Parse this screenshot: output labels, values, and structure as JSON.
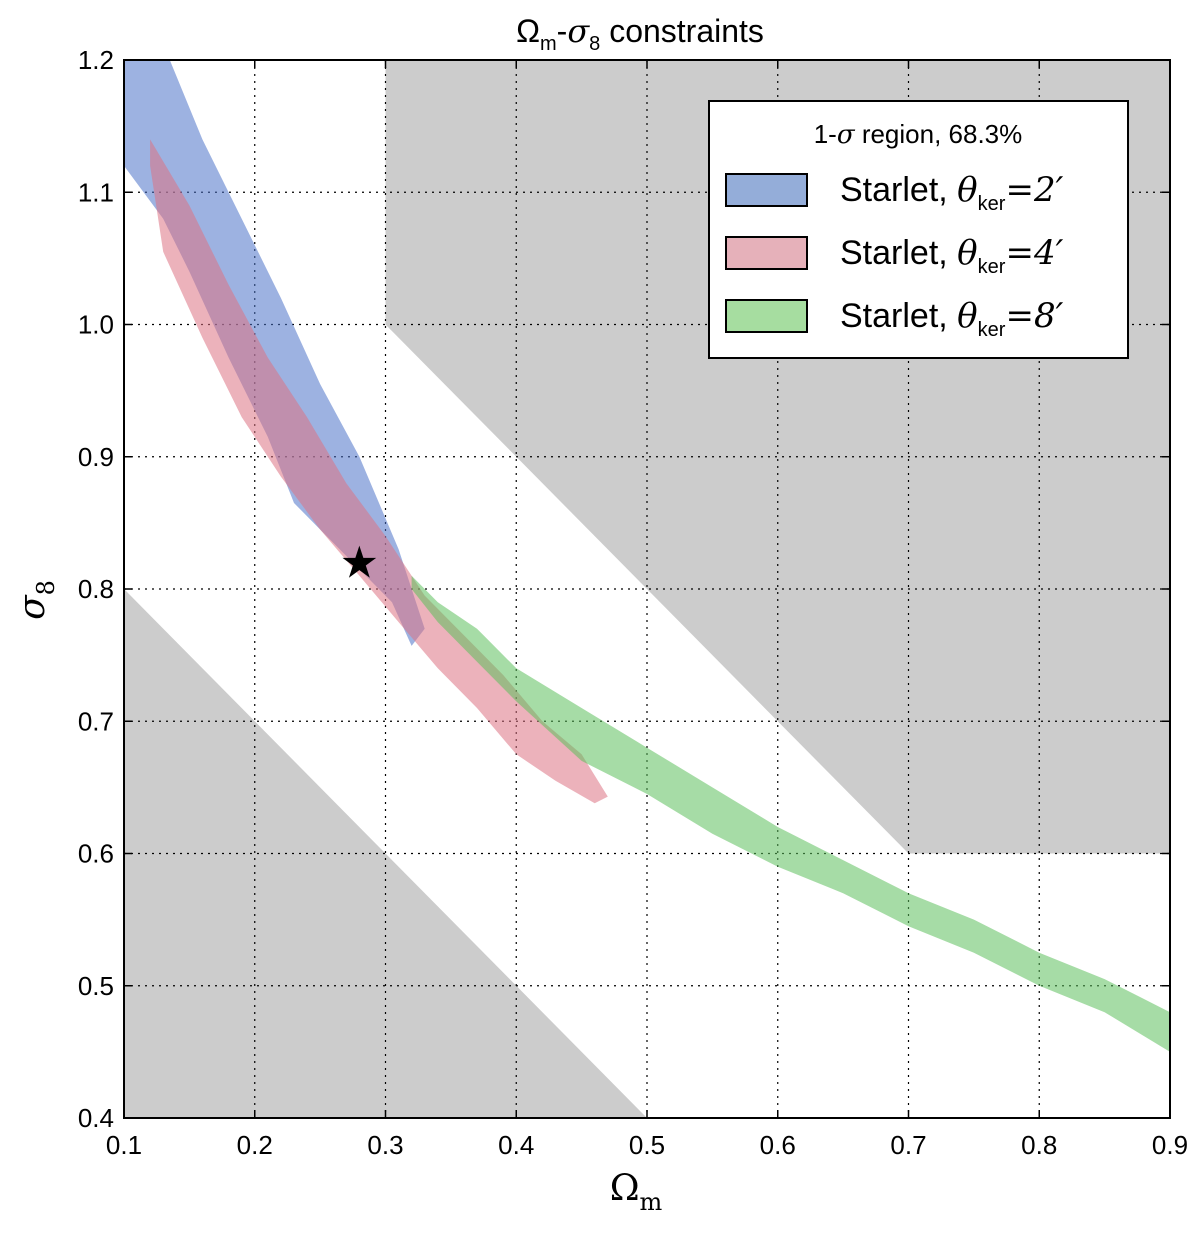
{
  "chart_data": {
    "type": "area",
    "title": "Ω_m-σ_8 constraints",
    "title_parts": {
      "omega": "Ω",
      "m": "m",
      "dash": "-",
      "sigma": "σ",
      "eight": "8",
      "rest": " constraints"
    },
    "xlabel": "Ω_m",
    "xlabel_parts": {
      "omega": "Ω",
      "sub": "m"
    },
    "ylabel": "σ_8",
    "ylabel_parts": {
      "sigma": "σ",
      "sub": "8"
    },
    "xlim": [
      0.1,
      0.9
    ],
    "ylim": [
      0.4,
      1.2
    ],
    "xticks": [
      "0.1",
      "0.2",
      "0.3",
      "0.4",
      "0.5",
      "0.6",
      "0.7",
      "0.8",
      "0.9"
    ],
    "yticks": [
      "0.4",
      "0.5",
      "0.6",
      "0.7",
      "0.8",
      "0.9",
      "1.0",
      "1.1",
      "1.2"
    ],
    "grid": true,
    "legend": {
      "placement": "top-right",
      "title": "1-σ region, 68.3%",
      "title_parts": {
        "pre": "1-",
        "sigma": "σ",
        "post": " region, 68.3%"
      }
    },
    "excluded_regions": [
      {
        "color": "#cccccc",
        "polygon": [
          [
            0.1,
            0.8
          ],
          [
            0.5,
            0.4
          ],
          [
            0.1,
            0.4
          ]
        ]
      },
      {
        "color": "#cccccc",
        "polygon": [
          [
            0.3,
            1.2
          ],
          [
            0.9,
            1.2
          ],
          [
            0.9,
            0.6
          ],
          [
            0.7,
            0.6
          ],
          [
            0.3,
            1.0
          ]
        ]
      }
    ],
    "series": [
      {
        "name": "Starlet, θ_ker = 2′",
        "name_parts": {
          "label": "Starlet, ",
          "theta": "θ",
          "sub": "ker",
          "eq": "=2′"
        },
        "color": "#4c72c8",
        "opacity": 0.55,
        "region": [
          [
            0.1,
            1.2
          ],
          [
            0.135,
            1.2
          ],
          [
            0.16,
            1.14
          ],
          [
            0.19,
            1.08
          ],
          [
            0.22,
            1.02
          ],
          [
            0.25,
            0.955
          ],
          [
            0.28,
            0.9
          ],
          [
            0.31,
            0.83
          ],
          [
            0.33,
            0.77
          ],
          [
            0.32,
            0.757
          ],
          [
            0.305,
            0.79
          ],
          [
            0.28,
            0.815
          ],
          [
            0.255,
            0.84
          ],
          [
            0.23,
            0.865
          ],
          [
            0.21,
            0.915
          ],
          [
            0.18,
            0.975
          ],
          [
            0.15,
            1.04
          ],
          [
            0.13,
            1.08
          ],
          [
            0.1,
            1.12
          ]
        ]
      },
      {
        "name": "Starlet, θ_ker = 4′",
        "name_parts": {
          "label": "Starlet, ",
          "theta": "θ",
          "sub": "ker",
          "eq": "=4′"
        },
        "color": "#dc7384",
        "opacity": 0.55,
        "region": [
          [
            0.12,
            1.14
          ],
          [
            0.15,
            1.09
          ],
          [
            0.18,
            1.03
          ],
          [
            0.21,
            0.975
          ],
          [
            0.24,
            0.93
          ],
          [
            0.27,
            0.88
          ],
          [
            0.3,
            0.84
          ],
          [
            0.33,
            0.795
          ],
          [
            0.36,
            0.765
          ],
          [
            0.39,
            0.735
          ],
          [
            0.42,
            0.7
          ],
          [
            0.45,
            0.675
          ],
          [
            0.47,
            0.643
          ],
          [
            0.46,
            0.638
          ],
          [
            0.43,
            0.655
          ],
          [
            0.4,
            0.675
          ],
          [
            0.37,
            0.71
          ],
          [
            0.34,
            0.74
          ],
          [
            0.31,
            0.775
          ],
          [
            0.28,
            0.81
          ],
          [
            0.25,
            0.845
          ],
          [
            0.22,
            0.885
          ],
          [
            0.19,
            0.93
          ],
          [
            0.16,
            0.99
          ],
          [
            0.13,
            1.055
          ],
          [
            0.12,
            1.12
          ]
        ]
      },
      {
        "name": "Starlet, θ_ker = 8′",
        "name_parts": {
          "label": "Starlet, ",
          "theta": "θ",
          "sub": "ker",
          "eq": "=8′"
        },
        "color": "#5cc05c",
        "opacity": 0.55,
        "region": [
          [
            0.32,
            0.81
          ],
          [
            0.34,
            0.79
          ],
          [
            0.37,
            0.77
          ],
          [
            0.4,
            0.74
          ],
          [
            0.45,
            0.71
          ],
          [
            0.5,
            0.68
          ],
          [
            0.55,
            0.65
          ],
          [
            0.6,
            0.62
          ],
          [
            0.65,
            0.595
          ],
          [
            0.7,
            0.57
          ],
          [
            0.75,
            0.55
          ],
          [
            0.8,
            0.525
          ],
          [
            0.85,
            0.505
          ],
          [
            0.9,
            0.48
          ],
          [
            0.9,
            0.45
          ],
          [
            0.85,
            0.48
          ],
          [
            0.8,
            0.5
          ],
          [
            0.75,
            0.525
          ],
          [
            0.7,
            0.545
          ],
          [
            0.65,
            0.57
          ],
          [
            0.6,
            0.59
          ],
          [
            0.55,
            0.615
          ],
          [
            0.5,
            0.645
          ],
          [
            0.45,
            0.67
          ],
          [
            0.4,
            0.715
          ],
          [
            0.37,
            0.745
          ],
          [
            0.34,
            0.775
          ],
          [
            0.32,
            0.8
          ]
        ]
      }
    ],
    "markers": [
      {
        "symbol": "★",
        "color": "#000000",
        "x": 0.28,
        "y": 0.82
      }
    ]
  }
}
